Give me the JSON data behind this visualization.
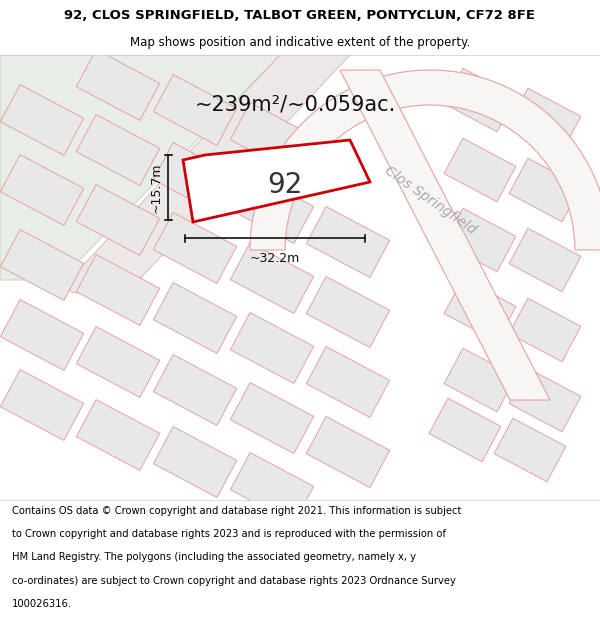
{
  "title_line1": "92, CLOS SPRINGFIELD, TALBOT GREEN, PONTYCLUN, CF72 8FE",
  "title_line2": "Map shows position and indicative extent of the property.",
  "area_text": "~239m²/~0.059ac.",
  "plot_number": "92",
  "dim_width": "~32.2m",
  "dim_height": "~15.7m",
  "street_name": "Clos Springfield",
  "footer_text": "Contains OS data © Crown copyright and database right 2021. This information is subject to Crown copyright and database rights 2023 and is reproduced with the permission of HM Land Registry. The polygons (including the associated geometry, namely x, y co-ordinates) are subject to Crown copyright and database rights 2023 Ordnance Survey 100026316.",
  "bg_color": "#ffffff",
  "field_color": "#e8ede8",
  "highlight_color": "#cc0000",
  "neighbor_line_color": "#e8a0a0",
  "neighbor_fill_color": "#e8e8e8",
  "road_fill_color": "#f0f0f0",
  "title_fontsize": 9.5,
  "subtitle_fontsize": 8.5,
  "footer_fontsize": 7.2,
  "area_fontsize": 15,
  "plot_num_fontsize": 20,
  "street_fontsize": 10,
  "dim_fontsize": 9
}
